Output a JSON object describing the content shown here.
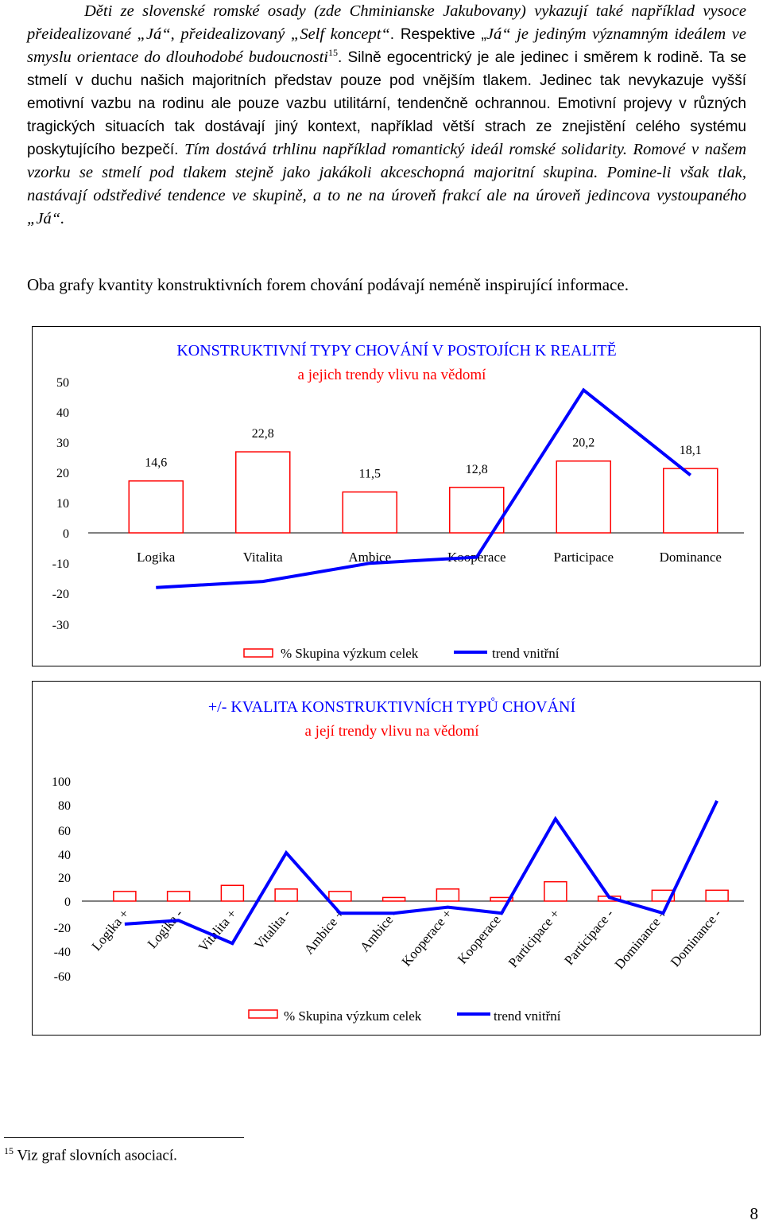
{
  "paragraph1": {
    "s1": "Děti ze slovenské romské osady (zde Chminianske Jakubovany) vykazují také například vysoce přeidealizované „Já“, přeidealizovaný „Self koncept“",
    "s2": ". Respektive „",
    "s3": "Já“ je jediným významným ideálem ve smyslu orientace do dlouhodobé budoucnosti",
    "footnote_ref": "15",
    "s4": ". Silně",
    "s5": "egocentrický je ale jedinec i směrem k rodině. Ta se stmelí v duchu našich majoritních představ pouze pod vnějším tlakem. Jedinec tak nevykazuje vyšší emotivní vazbu na rodinu ale pouze vazbu utilitární, tendenčně ochrannou. Emotivní projevy v různých tragických situacích tak dostávají jiný kontext, například větší strach ze znejistění celého systému poskytujícího bezpečí. ",
    "s6": "Tím dostává trhlinu například romantický ideál romské solidarity. Romové v našem vzorku se stmelí pod tlakem stejně jako jakákoli akceschopná majoritní skupina. Pomine-li však tlak, nastávají odstředivé tendence ve skupině, a to ne na úroveň frakcí ale na úroveň jedincova vystoupaného „Já“."
  },
  "paragraph2": "Oba grafy kvantity konstruktivních forem chování podávají neméně inspirující informace.",
  "chart_data": [
    {
      "type": "bar+line",
      "title": "KONSTRUKTIVNÍ TYPY CHOVÁNÍ V POSTOJÍCH K REALITĚ",
      "subtitle": "a jejich trendy vlivu na vědomí",
      "categories": [
        "Logika",
        "Vitalita",
        "Ambice",
        "Kooperace",
        "Participace",
        "Dominance"
      ],
      "series": [
        {
          "name": "% Skupina výzkum celek",
          "kind": "bar",
          "color": "#ff0000",
          "values": [
            14.6,
            22.8,
            11.5,
            12.8,
            20.2,
            18.1
          ],
          "data_labels": [
            "14,6",
            "22,8",
            "11,5",
            "12,8",
            "20,2",
            "18,1"
          ]
        },
        {
          "name": "trend vnitřní",
          "kind": "line",
          "color": "#0000ff",
          "values": [
            -18,
            -16,
            -10,
            -8,
            47,
            19
          ]
        }
      ],
      "y_ticks": [
        "50",
        "40",
        "30",
        "20",
        "10",
        "0",
        "-10",
        "-20",
        "-30"
      ],
      "ylim": [
        -30,
        50
      ]
    },
    {
      "type": "bar+line",
      "title": "+/- KVALITA KONSTRUKTIVNÍCH TYPŮ CHOVÁNÍ",
      "subtitle": "a její trendy vlivu na vědomí",
      "categories": [
        "Logika +",
        "Logika -",
        "Vitalita +",
        "Vitalita -",
        "Ambice +",
        "Ambice -",
        "Kooperace +",
        "Kooperace -",
        "Participace +",
        "Participace -",
        "Dominance +",
        "Dominance -"
      ],
      "series": [
        {
          "name": "% Skupina výzkum celek",
          "kind": "bar",
          "color": "#ff0000",
          "values": [
            8,
            8,
            13,
            10,
            8,
            3,
            10,
            3,
            16,
            4,
            9,
            9
          ]
        },
        {
          "name": "trend vnitřní",
          "kind": "line",
          "color": "#0000ff",
          "values": [
            -19,
            -16,
            -35,
            40,
            -10,
            -10,
            -5,
            -10,
            68,
            3,
            -10,
            83
          ]
        }
      ],
      "y_ticks": [
        "100",
        "80",
        "60",
        "40",
        "20",
        "0",
        "-20",
        "-40",
        "-60"
      ],
      "ylim": [
        -60,
        100
      ]
    }
  ],
  "footnote": {
    "number": "15",
    "text": "Viz graf slovních asociací."
  },
  "page_number": "8"
}
